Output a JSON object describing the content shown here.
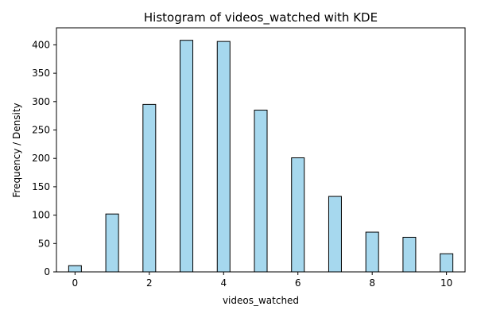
{
  "chart_data": {
    "type": "bar",
    "title": "Histogram of videos_watched with KDE",
    "xlabel": "videos_watched",
    "ylabel": "Frequency / Density",
    "xlim": [
      -0.5,
      10.5
    ],
    "ylim": [
      0,
      430
    ],
    "x_ticks": [
      0,
      2,
      4,
      6,
      8,
      10
    ],
    "y_ticks": [
      0,
      50,
      100,
      150,
      200,
      250,
      300,
      350,
      400
    ],
    "grid": false,
    "bar_color": "#a6d8ee",
    "edge_color": "#000000",
    "bins": [
      {
        "x": 0,
        "value": 11
      },
      {
        "x": 1,
        "value": 102
      },
      {
        "x": 2,
        "value": 295
      },
      {
        "x": 3,
        "value": 408
      },
      {
        "x": 4,
        "value": 406
      },
      {
        "x": 5,
        "value": 285
      },
      {
        "x": 6,
        "value": 201
      },
      {
        "x": 7,
        "value": 133
      },
      {
        "x": 8,
        "value": 70
      },
      {
        "x": 9,
        "value": 61
      },
      {
        "x": 10,
        "value": 32
      }
    ]
  }
}
